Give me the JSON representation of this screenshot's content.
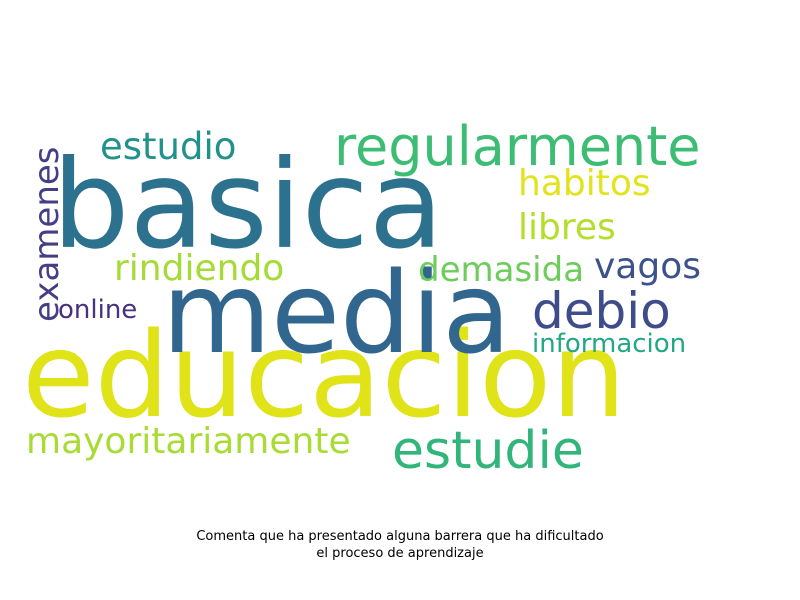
{
  "wordcloud": {
    "words": [
      {
        "key": "educacion",
        "text": "educacion",
        "color": "#dfe318"
      },
      {
        "key": "basica",
        "text": "basica",
        "color": "#2c718e"
      },
      {
        "key": "media",
        "text": "media",
        "color": "#31678e"
      },
      {
        "key": "regularmente",
        "text": "regularmente",
        "color": "#3dbc74"
      },
      {
        "key": "estudie",
        "text": "estudie",
        "color": "#31b57b"
      },
      {
        "key": "debio",
        "text": "debio",
        "color": "#3e4c8a"
      },
      {
        "key": "mayoritariamente",
        "text": "mayoritariamente",
        "color": "#a8db34"
      },
      {
        "key": "estudio",
        "text": "estudio",
        "color": "#21918c"
      },
      {
        "key": "habitos",
        "text": "habitos",
        "color": "#e1e41c"
      },
      {
        "key": "libres",
        "text": "libres",
        "color": "#b5de2b"
      },
      {
        "key": "rindiendo",
        "text": "rindiendo",
        "color": "#a5db36"
      },
      {
        "key": "demasida",
        "text": "demasida",
        "color": "#6ccd5a"
      },
      {
        "key": "vagos",
        "text": "vagos",
        "color": "#3b528b"
      },
      {
        "key": "online",
        "text": "online",
        "color": "#46327e"
      },
      {
        "key": "informacion",
        "text": "informacion",
        "color": "#22a884"
      },
      {
        "key": "examenes",
        "text": "examenes",
        "color": "#433e85"
      }
    ]
  },
  "caption": {
    "line1": "Comenta que ha presentado alguna barrera que ha dificultado",
    "line2": "el proceso de aprendizaje"
  }
}
